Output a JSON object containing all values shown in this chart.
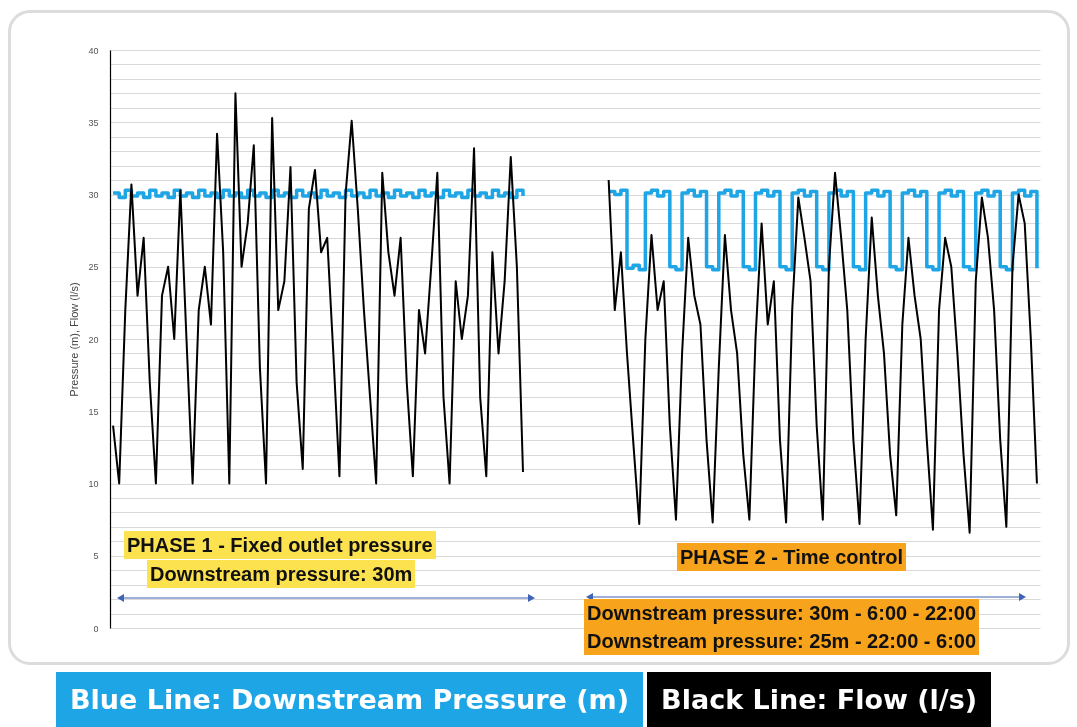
{
  "chart_data": {
    "type": "line",
    "categories": [
      null,
      null,
      null,
      null,
      null,
      null,
      null,
      null,
      null,
      null,
      null,
      null,
      null,
      null,
      null,
      null,
      null,
      null,
      null,
      null,
      null,
      null,
      null,
      null,
      null,
      null,
      null,
      null,
      null,
      null,
      null,
      null,
      null,
      null,
      null,
      null,
      null,
      null,
      null,
      null,
      null,
      null,
      null,
      null,
      null,
      null,
      null,
      null,
      null,
      null,
      null,
      null,
      null,
      null,
      null,
      null,
      null,
      null,
      null,
      null,
      null,
      null,
      null,
      null,
      null,
      null,
      null,
      null,
      null,
      null,
      null,
      null,
      null,
      null,
      null,
      null,
      null,
      null,
      null,
      null,
      null,
      null,
      null,
      null,
      null,
      null,
      null,
      null,
      null,
      null,
      null,
      null,
      null,
      null,
      null,
      null,
      null,
      null,
      null,
      null,
      null,
      null,
      null,
      null,
      null,
      null,
      null,
      null,
      null,
      null,
      null,
      null,
      null,
      null,
      null,
      null,
      null,
      null,
      null,
      null,
      null,
      null,
      null,
      null,
      null,
      null,
      null,
      null,
      null,
      null,
      null,
      null,
      null,
      null,
      null,
      null,
      null,
      null,
      null,
      null,
      null,
      null,
      null,
      null,
      null,
      null,
      null,
      null,
      null,
      null,
      null,
      null
    ],
    "ylabel": "Pressure (m), Flow (l/s)",
    "ylim": [
      0,
      40
    ],
    "yticks": [
      0,
      {
        "value": 1,
        "label": null
      },
      {
        "value": 2,
        "label": null
      },
      {
        "value": 3,
        "label": null
      },
      {
        "value": 4,
        "label": null
      },
      5,
      {
        "value": 6,
        "label": null
      },
      {
        "value": 7,
        "label": null
      },
      {
        "value": 8,
        "label": null
      },
      {
        "value": 9,
        "label": null
      },
      10,
      {
        "value": 11,
        "label": null
      },
      {
        "value": 12,
        "label": null
      },
      {
        "value": 13,
        "label": null
      },
      {
        "value": 14,
        "label": null
      },
      15,
      {
        "value": 16,
        "label": null
      },
      {
        "value": 17,
        "label": null
      },
      {
        "value": 18,
        "label": null
      },
      {
        "value": 19,
        "label": null
      },
      20,
      {
        "value": 21,
        "label": null
      },
      {
        "value": 22,
        "label": null
      },
      {
        "value": 23,
        "label": null
      },
      {
        "value": 24,
        "label": null
      },
      25,
      {
        "value": 26,
        "label": null
      },
      {
        "value": 27,
        "label": null
      },
      {
        "value": 28,
        "label": null
      },
      {
        "value": 29,
        "label": null
      },
      30,
      {
        "value": 31,
        "label": null
      },
      {
        "value": 32,
        "label": null
      },
      {
        "value": 33,
        "label": null
      },
      {
        "value": 34,
        "label": null
      },
      35,
      {
        "value": 36,
        "label": null
      },
      {
        "value": 37,
        "label": null
      },
      {
        "value": 38,
        "label": null
      },
      {
        "value": 39,
        "label": null
      },
      40
    ],
    "tick_labels": "y",
    "grid": "y",
    "legend": "bottom",
    "series": [
      {
        "name": "Blue Line: Downstream Pressure (m)",
        "type": "step",
        "color": "#1ea5e6",
        "values": [
          30.1,
          29.8,
          30.3,
          29.9,
          30.1,
          29.8,
          30.3,
          29.9,
          30.1,
          29.8,
          30.3,
          29.9,
          30.1,
          29.8,
          30.3,
          29.9,
          30.1,
          29.8,
          30.3,
          29.9,
          30.1,
          29.8,
          30.3,
          29.9,
          30.1,
          29.8,
          30.3,
          29.9,
          30.1,
          29.8,
          30.3,
          29.9,
          30.1,
          29.8,
          30.3,
          29.9,
          30.1,
          29.8,
          30.3,
          29.9,
          30.1,
          29.8,
          30.3,
          29.9,
          30.1,
          29.8,
          30.3,
          29.9,
          30.1,
          29.8,
          30.3,
          29.9,
          30.1,
          29.8,
          30.3,
          29.9,
          30.1,
          29.8,
          30.3,
          29.9,
          30.1,
          29.8,
          30.3,
          29.9,
          30.1,
          29.8,
          30.3,
          29.9,
          null,
          null,
          null,
          null,
          null,
          null,
          null,
          null,
          null,
          null,
          null,
          null,
          null,
          30.2,
          30,
          30.3,
          24.9,
          25.1,
          24.8,
          30.1,
          30.3,
          29.9,
          30.2,
          25,
          24.8,
          30.1,
          30.3,
          29.9,
          30.2,
          25,
          24.8,
          30.1,
          30.3,
          29.9,
          30.2,
          25,
          24.8,
          30.1,
          30.3,
          29.9,
          30.2,
          25,
          24.8,
          30.1,
          30.3,
          29.9,
          30.2,
          25,
          24.8,
          30.1,
          30.3,
          29.9,
          30.2,
          25,
          24.8,
          30.1,
          30.3,
          29.9,
          30.2,
          25,
          24.8,
          30.1,
          30.3,
          29.9,
          30.2,
          25,
          24.8,
          30.1,
          30.3,
          29.9,
          30.2,
          25,
          24.8,
          30.1,
          30.3,
          29.9,
          30.2,
          25,
          24.8,
          30.1,
          30.3,
          29.9,
          30.2,
          24.9
        ]
      },
      {
        "name": "Black Line: Flow (l/s)",
        "color": "#000000",
        "values": [
          14,
          10,
          22,
          30.7,
          23,
          27,
          17,
          10,
          23,
          25,
          20,
          30.3,
          20,
          10,
          22,
          25,
          21,
          34.2,
          26,
          10,
          37,
          25,
          28,
          33.4,
          18,
          10,
          35.3,
          22,
          24,
          31.9,
          17,
          11,
          29,
          31.7,
          26,
          27,
          19,
          10.5,
          30,
          35.1,
          29,
          22,
          16,
          10,
          31.5,
          26,
          23,
          27,
          17,
          10.5,
          22,
          19,
          25,
          31.5,
          16,
          10,
          24,
          20,
          23,
          33.2,
          16,
          10.5,
          26,
          19,
          24,
          32.6,
          25,
          10.8,
          null,
          null,
          null,
          null,
          null,
          null,
          null,
          null,
          null,
          null,
          null,
          null,
          null,
          31,
          22,
          26,
          19,
          13,
          7.2,
          20,
          27.2,
          22,
          24,
          14,
          7.5,
          19,
          27,
          23,
          21,
          13,
          7.3,
          18,
          27.2,
          22,
          19,
          12,
          7.5,
          20,
          28,
          21,
          24,
          13,
          7.3,
          22,
          29.8,
          27,
          24,
          14,
          7.5,
          25,
          31.5,
          27,
          22,
          13,
          7.2,
          20,
          28.4,
          23,
          19,
          12,
          7.8,
          21,
          27,
          23,
          20,
          13,
          6.8,
          22,
          27,
          25,
          19,
          12,
          6.6,
          24,
          29.8,
          27,
          22,
          13,
          7,
          25,
          30,
          28,
          20,
          10
        ]
      }
    ],
    "annotations": [
      "PHASE 1 - Fixed outlet pressure",
      "Downstream pressure: 30m",
      "PHASE 2 - Time control",
      "Downstream pressure: 30m - 6:00 - 22:00",
      "Downstream pressure: 25m - 22:00 - 6:00"
    ]
  }
}
